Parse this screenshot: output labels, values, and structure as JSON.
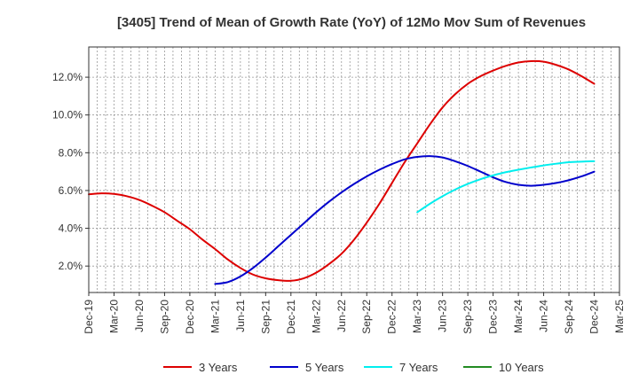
{
  "chart_data": {
    "type": "line",
    "title": "[3405]  Trend of Mean of Growth Rate (YoY) of 12Mo Mov Sum of Revenues",
    "xlabel": "",
    "ylabel": "",
    "x_ticks": [
      "Dec-19",
      "Mar-20",
      "Jun-20",
      "Sep-20",
      "Dec-20",
      "Mar-21",
      "Jun-21",
      "Sep-21",
      "Dec-21",
      "Mar-22",
      "Jun-22",
      "Sep-22",
      "Dec-22",
      "Mar-23",
      "Jun-23",
      "Sep-23",
      "Dec-23",
      "Mar-24",
      "Jun-24",
      "Sep-24",
      "Dec-24",
      "Mar-25"
    ],
    "y_ticks": [
      "2.0%",
      "4.0%",
      "6.0%",
      "8.0%",
      "10.0%",
      "12.0%"
    ],
    "y_tick_values": [
      2.0,
      4.0,
      6.0,
      8.0,
      10.0,
      12.0
    ],
    "ylim": [
      0.6,
      13.6
    ],
    "x_range": [
      0,
      21
    ],
    "grid": true,
    "legend_position": "bottom",
    "series": [
      {
        "name": "3 Years",
        "color": "#dd0000",
        "x": [
          0,
          0.5,
          1,
          1.5,
          2,
          2.5,
          3,
          3.5,
          4,
          4.5,
          5,
          5.5,
          6,
          6.5,
          7,
          7.5,
          8,
          8.5,
          9,
          9.5,
          10,
          10.5,
          11,
          11.5,
          12,
          12.5,
          13,
          13.5,
          14,
          14.5,
          15,
          15.5,
          16,
          16.5,
          17,
          17.5,
          18,
          18.5,
          19,
          19.5,
          20
        ],
        "values": [
          5.8,
          5.85,
          5.82,
          5.7,
          5.5,
          5.2,
          4.85,
          4.4,
          3.95,
          3.4,
          2.9,
          2.35,
          1.9,
          1.55,
          1.35,
          1.25,
          1.22,
          1.35,
          1.65,
          2.1,
          2.65,
          3.4,
          4.3,
          5.3,
          6.4,
          7.5,
          8.5,
          9.5,
          10.4,
          11.1,
          11.65,
          12.05,
          12.35,
          12.6,
          12.78,
          12.85,
          12.82,
          12.65,
          12.4,
          12.05,
          11.65
        ]
      },
      {
        "name": "5 Years",
        "color": "#0000cc",
        "x": [
          5,
          5.5,
          6,
          6.5,
          7,
          7.5,
          8,
          8.5,
          9,
          9.5,
          10,
          10.5,
          11,
          11.5,
          12,
          12.5,
          13,
          13.5,
          14,
          14.5,
          15,
          15.5,
          16,
          16.5,
          17,
          17.5,
          18,
          18.5,
          19,
          19.5,
          20
        ],
        "values": [
          1.05,
          1.15,
          1.45,
          1.9,
          2.45,
          3.05,
          3.65,
          4.25,
          4.85,
          5.4,
          5.9,
          6.35,
          6.75,
          7.1,
          7.4,
          7.65,
          7.78,
          7.82,
          7.75,
          7.55,
          7.3,
          7.0,
          6.7,
          6.45,
          6.3,
          6.25,
          6.3,
          6.4,
          6.55,
          6.75,
          7.0
        ]
      },
      {
        "name": "7 Years",
        "color": "#00eeee",
        "x": [
          13,
          13.5,
          14,
          14.5,
          15,
          15.5,
          16,
          16.5,
          17,
          17.5,
          18,
          18.5,
          19,
          19.5,
          20
        ],
        "values": [
          4.85,
          5.3,
          5.7,
          6.05,
          6.35,
          6.6,
          6.8,
          6.97,
          7.1,
          7.22,
          7.33,
          7.42,
          7.5,
          7.53,
          7.55
        ]
      },
      {
        "name": "10 Years",
        "color": "#228b22",
        "x": [],
        "values": []
      }
    ]
  }
}
